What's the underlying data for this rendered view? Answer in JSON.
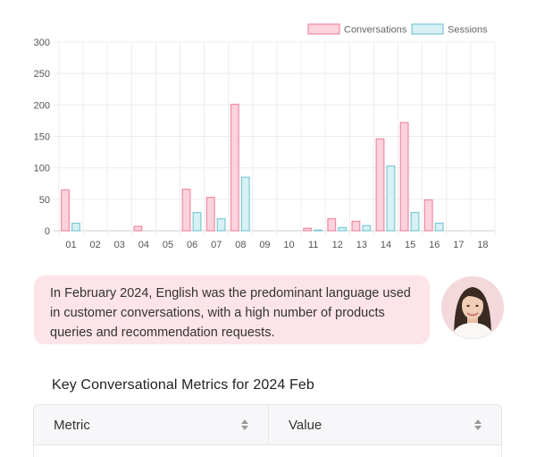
{
  "chart_data": {
    "type": "bar",
    "categories": [
      "01",
      "02",
      "03",
      "04",
      "05",
      "06",
      "07",
      "08",
      "09",
      "10",
      "11",
      "12",
      "13",
      "14",
      "15",
      "16",
      "17",
      "18"
    ],
    "series": [
      {
        "name": "Conversations",
        "values": [
          65,
          0,
          0,
          7,
          0,
          66,
          53,
          201,
          0,
          0,
          4,
          19,
          15,
          146,
          172,
          49,
          0,
          0
        ],
        "color": "#f08aa5",
        "fill": "#fcd3dd"
      },
      {
        "name": "Sessions",
        "values": [
          12,
          0,
          0,
          0,
          0,
          29,
          19,
          85,
          0,
          0,
          1,
          5,
          8,
          103,
          29,
          12,
          0,
          0
        ],
        "color": "#7cc9d6",
        "fill": "#d8f1f4"
      }
    ],
    "ylim": [
      0,
      300
    ],
    "yticks": [
      0,
      50,
      100,
      150,
      200,
      250,
      300
    ],
    "grid": true,
    "legend": "top-right"
  },
  "summary": {
    "text": "In February 2024, English was the predominant language used in customer conversations, with a high number of products queries and recommendation requests."
  },
  "metrics": {
    "title": "Key Conversational Metrics for 2024 Feb",
    "columns": [
      "Metric",
      "Value"
    ]
  }
}
